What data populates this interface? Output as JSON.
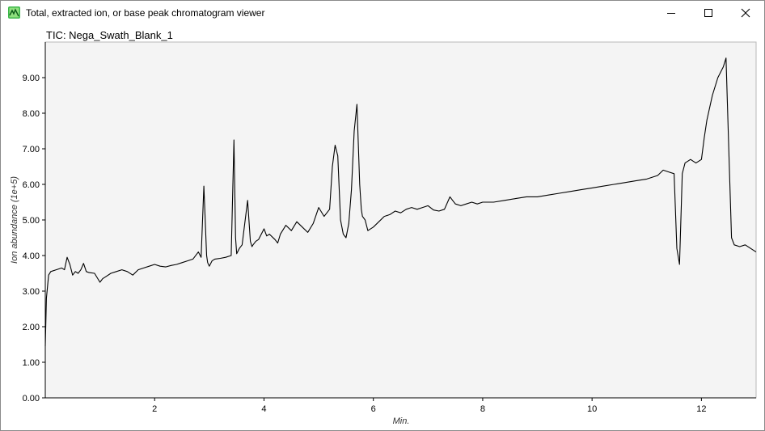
{
  "window": {
    "title": "Total, extracted ion, or base peak chromatogram viewer",
    "icon": "chromatogram-app-icon",
    "controls": [
      "minimize-icon",
      "maximize-icon",
      "close-icon"
    ]
  },
  "chart_data": {
    "type": "line",
    "title": "TIC: Nega_Swath_Blank_1",
    "xlabel": "Min.",
    "ylabel": "Ion abundance (1e+5)",
    "xlim": [
      0,
      13
    ],
    "ylim": [
      0,
      10
    ],
    "x_ticks": [
      {
        "value": 2,
        "label": "2"
      },
      {
        "value": 4,
        "label": "4"
      },
      {
        "value": 6,
        "label": "6"
      },
      {
        "value": 8,
        "label": "8"
      },
      {
        "value": 10,
        "label": "10"
      },
      {
        "value": 12,
        "label": "12"
      }
    ],
    "y_ticks": [
      {
        "value": 0,
        "label": "0.00"
      },
      {
        "value": 1,
        "label": "1.00"
      },
      {
        "value": 2,
        "label": "2.00"
      },
      {
        "value": 3,
        "label": "3.00"
      },
      {
        "value": 4,
        "label": "4.00"
      },
      {
        "value": 5,
        "label": "5.00"
      },
      {
        "value": 6,
        "label": "6.00"
      },
      {
        "value": 7,
        "label": "7.00"
      },
      {
        "value": 8,
        "label": "8.00"
      },
      {
        "value": 9,
        "label": "9.00"
      }
    ],
    "grid": false,
    "colors": {
      "line": "#000000",
      "plot_background": "#f4f4f4",
      "axis": "#000000"
    },
    "series": [
      {
        "x": [
          0.0,
          0.02,
          0.06,
          0.1,
          0.2,
          0.3,
          0.35,
          0.4,
          0.45,
          0.5,
          0.55,
          0.6,
          0.65,
          0.7,
          0.75,
          0.8,
          0.9,
          1.0,
          1.05,
          1.1,
          1.2,
          1.3,
          1.4,
          1.5,
          1.6,
          1.7,
          1.8,
          1.9,
          2.0,
          2.1,
          2.2,
          2.3,
          2.4,
          2.5,
          2.6,
          2.7,
          2.8,
          2.85,
          2.9,
          2.95,
          2.97,
          3.0,
          3.05,
          3.1,
          3.2,
          3.3,
          3.4,
          3.45,
          3.48,
          3.5,
          3.55,
          3.6,
          3.7,
          3.75,
          3.78,
          3.8,
          3.85,
          3.9,
          4.0,
          4.05,
          4.1,
          4.2,
          4.25,
          4.3,
          4.4,
          4.5,
          4.6,
          4.7,
          4.8,
          4.9,
          5.0,
          5.1,
          5.2,
          5.25,
          5.3,
          5.35,
          5.4,
          5.45,
          5.5,
          5.55,
          5.6,
          5.65,
          5.7,
          5.75,
          5.78,
          5.8,
          5.85,
          5.9,
          6.0,
          6.1,
          6.2,
          6.3,
          6.4,
          6.5,
          6.6,
          6.7,
          6.8,
          6.9,
          7.0,
          7.1,
          7.2,
          7.3,
          7.4,
          7.45,
          7.5,
          7.6,
          7.7,
          7.8,
          7.9,
          8.0,
          8.2,
          8.4,
          8.6,
          8.8,
          9.0,
          9.2,
          9.4,
          9.6,
          9.8,
          10.0,
          10.2,
          10.4,
          10.6,
          10.8,
          11.0,
          11.2,
          11.3,
          11.4,
          11.5,
          11.55,
          11.6,
          11.65,
          11.7,
          11.8,
          11.9,
          12.0,
          12.05,
          12.1,
          12.2,
          12.3,
          12.4,
          12.45,
          12.5,
          12.55,
          12.6,
          12.7,
          12.8,
          12.9,
          13.0
        ],
        "y": [
          1.45,
          2.8,
          3.45,
          3.55,
          3.6,
          3.65,
          3.6,
          3.95,
          3.75,
          3.45,
          3.55,
          3.5,
          3.6,
          3.78,
          3.55,
          3.52,
          3.5,
          3.25,
          3.35,
          3.4,
          3.5,
          3.55,
          3.6,
          3.55,
          3.45,
          3.6,
          3.65,
          3.7,
          3.75,
          3.7,
          3.68,
          3.72,
          3.75,
          3.8,
          3.85,
          3.9,
          4.1,
          3.95,
          5.95,
          4.0,
          3.8,
          3.7,
          3.85,
          3.9,
          3.92,
          3.95,
          4.0,
          7.25,
          4.5,
          4.05,
          4.2,
          4.3,
          5.55,
          4.4,
          4.25,
          4.3,
          4.4,
          4.45,
          4.75,
          4.55,
          4.6,
          4.45,
          4.35,
          4.6,
          4.85,
          4.7,
          4.95,
          4.8,
          4.65,
          4.9,
          5.35,
          5.1,
          5.3,
          6.5,
          7.1,
          6.8,
          5.0,
          4.6,
          4.5,
          4.9,
          5.85,
          7.5,
          8.25,
          6.0,
          5.3,
          5.1,
          5.0,
          4.7,
          4.8,
          4.95,
          5.1,
          5.15,
          5.25,
          5.2,
          5.3,
          5.35,
          5.3,
          5.35,
          5.4,
          5.28,
          5.25,
          5.3,
          5.65,
          5.55,
          5.45,
          5.4,
          5.45,
          5.5,
          5.45,
          5.5,
          5.5,
          5.55,
          5.6,
          5.65,
          5.65,
          5.7,
          5.75,
          5.8,
          5.85,
          5.9,
          5.95,
          6.0,
          6.05,
          6.1,
          6.15,
          6.25,
          6.4,
          6.35,
          6.3,
          4.2,
          3.75,
          6.3,
          6.6,
          6.7,
          6.6,
          6.7,
          7.3,
          7.8,
          8.5,
          9.0,
          9.3,
          9.55,
          7.0,
          4.5,
          4.3,
          4.25,
          4.3,
          4.2,
          4.1
        ]
      }
    ]
  }
}
